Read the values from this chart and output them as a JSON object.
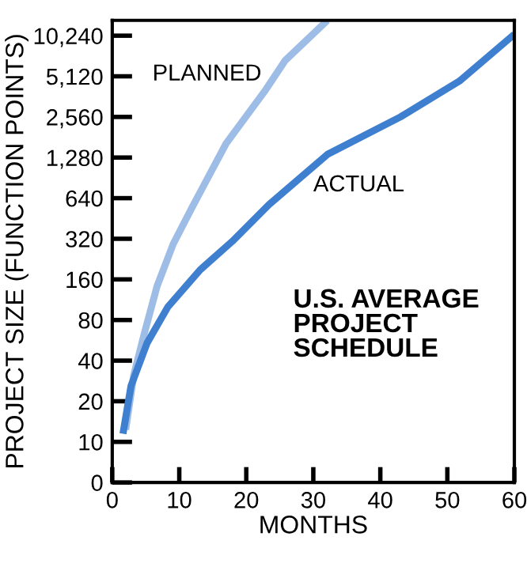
{
  "chart_data": {
    "type": "line",
    "xlabel": "MONTHS",
    "ylabel": "PROJECT SIZE (FUNCTION POINTS)",
    "annotations": [
      "U.S. AVERAGE\nPROJECT\nSCHEDULE"
    ],
    "log": "y",
    "grid": false,
    "legend": false,
    "marker": "none",
    "line_style": "solid",
    "xlim": [
      0,
      60
    ],
    "xticks": [
      0,
      10,
      20,
      30,
      40,
      50,
      60
    ],
    "ylim": [
      0,
      13300
    ],
    "yticks": [
      0,
      10,
      20,
      40,
      80,
      160,
      320,
      640,
      {
        "value": 1280,
        "label": "1,280"
      },
      {
        "value": 2560,
        "label": "2,560"
      },
      {
        "value": 5120,
        "label": "5,120"
      },
      {
        "value": 10240,
        "label": "10,240"
      }
    ],
    "series": [
      {
        "name": "PLANNED",
        "color": "#9dbce6",
        "x": [
          2.0,
          3.2,
          4.8,
          6.7,
          9.1,
          11.9,
          17,
          22.7,
          25.8,
          32.1
        ],
        "values": [
          12.3,
          31,
          64,
          143,
          293,
          545,
          1630,
          3940,
          6700,
          13300
        ]
      },
      {
        "name": "ACTUAL",
        "color": "#3f7fcf",
        "x": [
          1.6,
          2.8,
          5.2,
          8.3,
          13.1,
          17.9,
          23.4,
          32.1,
          43,
          51.8,
          60
        ],
        "values": [
          11.5,
          26,
          54,
          100,
          188,
          306,
          574,
          1350,
          2560,
          4720,
          10500
        ]
      }
    ]
  }
}
